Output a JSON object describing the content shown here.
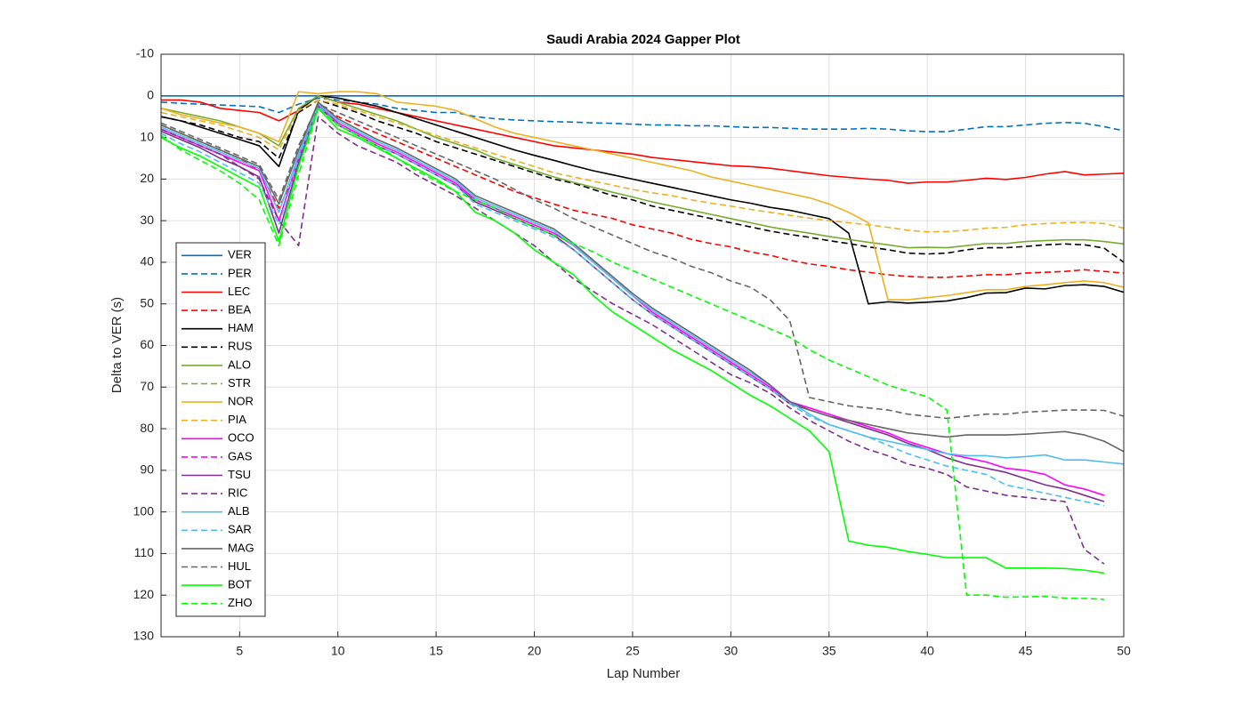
{
  "chart_data": {
    "type": "line",
    "title": "Saudi Arabia 2024 Gapper Plot",
    "x_label": "Lap Number",
    "y_label": "Delta to VER (s)",
    "xlim": [
      1,
      50
    ],
    "xticks": [
      5,
      10,
      15,
      20,
      25,
      30,
      35,
      40,
      45,
      50
    ],
    "ylim": [
      -10,
      130
    ],
    "yticks": [
      -10,
      0,
      10,
      20,
      30,
      40,
      50,
      60,
      70,
      80,
      90,
      100,
      110,
      120,
      130
    ],
    "y_reversed": true,
    "grid": true,
    "legend": "southwest",
    "x": [
      1,
      2,
      3,
      4,
      5,
      6,
      7,
      8,
      9,
      10,
      11,
      12,
      13,
      14,
      15,
      16,
      17,
      18,
      19,
      20,
      21,
      22,
      23,
      24,
      25,
      26,
      27,
      28,
      29,
      30,
      31,
      32,
      33,
      34,
      35,
      36,
      37,
      38,
      39,
      40,
      41,
      42,
      43,
      44,
      45,
      46,
      47,
      48,
      49,
      50
    ],
    "series": [
      {
        "name": "VER",
        "color": "#0072bd",
        "line_style": "solid",
        "values": [
          0,
          0,
          0,
          0,
          0,
          0,
          0,
          0,
          0,
          0,
          0,
          0,
          0,
          0,
          0,
          0,
          0,
          0,
          0,
          0,
          0,
          0,
          0,
          0,
          0,
          0,
          0,
          0,
          0,
          0,
          0,
          0,
          0,
          0,
          0,
          0,
          0,
          0,
          0,
          0,
          0,
          0,
          0,
          0,
          0,
          0,
          0,
          0,
          0,
          0
        ]
      },
      {
        "name": "PER",
        "color": "#0072bd",
        "line_style": "dashed",
        "values": [
          1.5,
          1.8,
          2,
          2.2,
          2.4,
          2.6,
          4,
          2,
          0.5,
          1,
          1.5,
          2,
          3,
          3.5,
          4,
          4,
          5,
          5.5,
          5.8,
          6,
          6.2,
          6.3,
          6.5,
          6.6,
          6.8,
          7,
          7,
          7.2,
          7.2,
          7.4,
          7.6,
          7.6,
          7.8,
          8,
          8,
          8,
          7.8,
          8,
          8.4,
          8.6,
          8.6,
          8,
          7.4,
          7.4,
          7,
          6.6,
          6.4,
          6.6,
          7.4,
          8.4
        ]
      },
      {
        "name": "LEC",
        "color": "#ff0000",
        "line_style": "solid",
        "values": [
          1,
          1,
          1.5,
          3,
          3.5,
          4,
          6,
          3.5,
          0,
          1.5,
          2,
          3,
          4,
          5,
          6,
          7,
          8,
          9,
          10,
          11,
          12,
          12.5,
          13,
          13.5,
          14,
          14.8,
          15.3,
          15.8,
          16.3,
          16.8,
          17,
          17.4,
          18,
          18.6,
          19.2,
          19.6,
          20,
          20.3,
          21,
          20.7,
          20.7,
          20.3,
          19.8,
          20.1,
          19.6,
          18.8,
          18.2,
          19,
          18.8,
          18.6
        ]
      },
      {
        "name": "BEA",
        "color": "#ff0000",
        "line_style": "dashed",
        "values": [
          7,
          9,
          11,
          13,
          15,
          18,
          27,
          17,
          2,
          5,
          7,
          9,
          11,
          13,
          15,
          17,
          19,
          21,
          23,
          24.5,
          26,
          27.5,
          28.5,
          29.5,
          31,
          32,
          33,
          34.5,
          35.5,
          36.3,
          37.5,
          38.3,
          39.5,
          40.4,
          41,
          41.8,
          42.4,
          43,
          43.4,
          43.6,
          43.6,
          43.3,
          43,
          43,
          42.6,
          42.4,
          42.2,
          41.8,
          42.2,
          42.6
        ]
      },
      {
        "name": "HAM",
        "color": "#000000",
        "line_style": "solid",
        "values": [
          5,
          6,
          7.5,
          9,
          10.5,
          12,
          17,
          3.5,
          0,
          0.5,
          1.5,
          2.5,
          4,
          5.5,
          7,
          8.5,
          10,
          11.5,
          13,
          14.3,
          15.5,
          16.8,
          18,
          19,
          20,
          21,
          22,
          23,
          24,
          25,
          25.8,
          26.8,
          27.5,
          28.5,
          29.5,
          33,
          50,
          49.5,
          49.8,
          49.6,
          49.3,
          48.5,
          47.4,
          47.3,
          46.2,
          46.4,
          45.6,
          45.4,
          45.8,
          47.2
        ]
      },
      {
        "name": "RUS",
        "color": "#000000",
        "line_style": "dashed",
        "values": [
          5,
          6,
          7,
          8.5,
          10,
          11,
          15,
          4,
          1,
          2.5,
          4,
          6,
          7.5,
          9,
          11,
          12.5,
          14,
          15.5,
          17,
          18.5,
          20,
          21,
          22.5,
          24,
          25,
          26.5,
          27.5,
          28.5,
          29.5,
          30.5,
          31.5,
          32.5,
          33.3,
          34,
          34.8,
          35.5,
          36.3,
          37,
          37.8,
          38,
          37.8,
          37,
          36.5,
          36.5,
          36.2,
          35.8,
          35.6,
          35.8,
          36.6,
          40
        ]
      },
      {
        "name": "ALO",
        "color": "#77ac30",
        "line_style": "solid",
        "values": [
          3,
          4,
          5,
          6,
          7.5,
          9,
          12,
          3,
          0,
          1.5,
          3,
          4.5,
          6,
          8,
          10,
          11.5,
          13,
          15,
          16.5,
          18,
          19.5,
          20.8,
          22,
          23.2,
          24.3,
          25.5,
          26.5,
          27.5,
          28.5,
          29.5,
          30.5,
          31.5,
          32.3,
          33,
          33.8,
          34.5,
          35.2,
          35.8,
          36.5,
          36.4,
          36.5,
          36,
          35.5,
          35.5,
          35,
          34.8,
          34.6,
          34.6,
          35,
          35.6
        ]
      },
      {
        "name": "STR",
        "color": "#77ac30",
        "line_style": "dashed",
        "values": [
          7,
          9,
          11,
          13,
          15,
          17,
          null,
          null,
          null,
          null,
          null,
          null,
          null,
          null,
          null,
          null,
          null,
          null,
          null,
          null,
          null,
          null,
          null,
          null,
          null,
          null,
          null,
          null,
          null,
          null,
          null,
          null,
          null,
          null,
          null,
          null,
          null,
          null,
          null,
          null,
          null,
          null,
          null,
          null,
          null,
          null,
          null,
          null,
          null,
          null
        ]
      },
      {
        "name": "NOR",
        "color": "#edb120",
        "line_style": "solid",
        "values": [
          3,
          4.5,
          5.5,
          6.5,
          7.5,
          9,
          11,
          -1,
          -0.5,
          -1,
          -1,
          -0.5,
          1.5,
          2,
          2.5,
          3.5,
          5.5,
          7.5,
          9,
          10,
          11,
          12,
          13,
          14,
          15,
          16,
          17,
          18,
          19.5,
          20.5,
          21.5,
          22.5,
          23.5,
          24.5,
          26,
          28,
          30.5,
          49,
          49,
          48.5,
          48,
          47.3,
          46.6,
          46.6,
          45.8,
          45.4,
          44.9,
          44.5,
          44.9,
          46
        ]
      },
      {
        "name": "PIA",
        "color": "#edb120",
        "line_style": "dashed",
        "values": [
          4,
          5,
          6,
          7,
          8.5,
          10,
          13,
          3.5,
          1,
          2,
          3.5,
          5,
          6.5,
          8,
          9.5,
          11,
          12.5,
          14,
          15.5,
          17,
          18.5,
          19.5,
          20.5,
          21.5,
          22.5,
          23.3,
          24,
          25,
          25.8,
          26.5,
          27.3,
          28,
          28.7,
          29.4,
          30,
          30.5,
          31,
          31.6,
          32.3,
          32.7,
          32.6,
          32.3,
          31.8,
          31.6,
          31,
          30.7,
          30.5,
          30.4,
          30.7,
          31.8
        ]
      },
      {
        "name": "OCO",
        "color": "#ff00ff",
        "line_style": "solid",
        "values": [
          8,
          10,
          12,
          14,
          16,
          18,
          30,
          15,
          2,
          6.5,
          9,
          11.5,
          13.5,
          16,
          18.5,
          21,
          25,
          27,
          29,
          31,
          33,
          36,
          40,
          44,
          48,
          52,
          55,
          58,
          61,
          64,
          67,
          70,
          73.5,
          75,
          76.5,
          78,
          79.5,
          81,
          83,
          84.5,
          86,
          87,
          88,
          89.5,
          90,
          91,
          93.5,
          94.5,
          96,
          null
        ]
      },
      {
        "name": "GAS",
        "color": "#ff00ff",
        "line_style": "dashed",
        "values": [
          8,
          10,
          12,
          14,
          16,
          null,
          null,
          null,
          null,
          null,
          null,
          null,
          null,
          null,
          null,
          null,
          null,
          null,
          null,
          null,
          null,
          null,
          null,
          null,
          null,
          null,
          null,
          null,
          null,
          null,
          null,
          null,
          null,
          null,
          null,
          null,
          null,
          null,
          null,
          null,
          null,
          null,
          null,
          null,
          null,
          null,
          null,
          null,
          null,
          null
        ]
      },
      {
        "name": "TSU",
        "color": "#7e2f8e",
        "line_style": "solid",
        "values": [
          8.5,
          10.5,
          12.5,
          15,
          17,
          19.5,
          33,
          16,
          2.5,
          7,
          9.5,
          12,
          14,
          16.5,
          19,
          21.5,
          25.5,
          27.5,
          29.5,
          31.5,
          33.5,
          37,
          41,
          45,
          49,
          52.5,
          55.5,
          58.5,
          61.5,
          64.5,
          67.5,
          70.5,
          74,
          75.5,
          77,
          78.5,
          80,
          81.5,
          83.5,
          85,
          87,
          88.5,
          89.5,
          90.5,
          92,
          93.5,
          94.5,
          96,
          97.5,
          null
        ]
      },
      {
        "name": "RIC",
        "color": "#7e2f8e",
        "line_style": "dashed",
        "values": [
          8,
          10,
          12,
          14,
          17,
          20,
          30,
          36,
          5,
          9,
          12,
          14,
          16,
          19,
          21.5,
          24,
          27,
          30,
          33,
          36,
          40,
          44,
          47,
          50,
          52.5,
          55,
          58,
          61,
          64,
          67,
          69,
          71.5,
          75,
          78,
          80.5,
          83,
          85,
          86.5,
          88.5,
          89.5,
          91,
          94,
          95,
          96,
          96.5,
          97,
          97.5,
          109,
          112.5,
          null
        ]
      },
      {
        "name": "ALB",
        "color": "#4dbeee",
        "line_style": "solid",
        "values": [
          7.5,
          9.5,
          11.5,
          13.5,
          15.5,
          17.5,
          28,
          14,
          2,
          6,
          8.5,
          11,
          13,
          15.5,
          18,
          20.5,
          24.5,
          26.5,
          28.5,
          30.5,
          32.5,
          36,
          40,
          44,
          48,
          51.5,
          54.5,
          57.5,
          60.5,
          63.5,
          66.5,
          69.5,
          73.5,
          76.5,
          79,
          80.5,
          82,
          83,
          84,
          85,
          86,
          86.5,
          86.5,
          87,
          86.7,
          86.3,
          87.5,
          87.5,
          88,
          88.5
        ]
      },
      {
        "name": "SAR",
        "color": "#4dbeee",
        "line_style": "dashed",
        "values": [
          9,
          11.5,
          13.5,
          16,
          18.5,
          21,
          31,
          15,
          2.5,
          7,
          9.5,
          12,
          14,
          16.5,
          19,
          21.5,
          26,
          28,
          30,
          32,
          34,
          37,
          41,
          45,
          49,
          52.5,
          55.5,
          58.5,
          61.5,
          64.5,
          67.5,
          70.5,
          74,
          77,
          79,
          80.5,
          82,
          84,
          86,
          87.5,
          89,
          90,
          91,
          93.5,
          94.5,
          95.5,
          96.5,
          97.5,
          98.5,
          null
        ]
      },
      {
        "name": "MAG",
        "color": "#666666",
        "line_style": "solid",
        "values": [
          7,
          9,
          11,
          13,
          15,
          17,
          26,
          13,
          1.5,
          5.5,
          8,
          10.5,
          12.5,
          15,
          17.5,
          20,
          24,
          26,
          28,
          30,
          32,
          35.5,
          39.5,
          43.5,
          47.5,
          51,
          54,
          57,
          60,
          63,
          66,
          69.5,
          73.5,
          75.5,
          77,
          78,
          79,
          80,
          81,
          81.5,
          82,
          81.5,
          81.5,
          81.5,
          81.3,
          81,
          80.7,
          81.5,
          83,
          85.5
        ]
      },
      {
        "name": "HUL",
        "color": "#666666",
        "line_style": "dashed",
        "values": [
          6.5,
          8.5,
          10.5,
          12.5,
          14.5,
          16.5,
          25,
          12,
          2,
          4,
          6,
          8,
          10,
          12,
          14,
          16,
          18,
          20,
          22.5,
          25,
          27,
          29.5,
          31.5,
          33.5,
          35.5,
          37.5,
          39,
          41,
          42.5,
          44.5,
          46,
          49,
          54,
          72.5,
          73.5,
          74.5,
          75,
          75.5,
          76.5,
          77,
          77.5,
          77,
          76.5,
          76.5,
          76,
          75.8,
          75.5,
          75.5,
          75.6,
          77
        ]
      },
      {
        "name": "BOT",
        "color": "#00ff00",
        "line_style": "solid",
        "values": [
          10,
          12.5,
          14.5,
          17,
          19.5,
          22,
          35,
          17,
          3,
          8,
          10,
          12.5,
          15,
          17.5,
          20,
          23,
          28,
          30,
          33,
          37,
          40,
          43,
          48,
          52,
          55,
          58,
          61,
          63.5,
          66,
          69,
          72,
          74.5,
          77.5,
          80.5,
          85.5,
          107,
          108,
          108.5,
          109.5,
          110.2,
          111,
          111,
          111,
          113.5,
          113.5,
          113.5,
          113.6,
          114,
          114.7,
          null
        ]
      },
      {
        "name": "ZHO",
        "color": "#00ff00",
        "line_style": "dashed",
        "values": [
          9.5,
          13,
          15.5,
          18,
          21,
          25,
          36,
          19,
          3,
          7,
          9.5,
          12,
          15,
          18,
          20.5,
          23,
          25,
          27,
          29.5,
          31.5,
          33.5,
          35.5,
          37.5,
          40,
          42,
          44,
          46,
          48,
          50,
          52,
          54,
          56,
          58,
          61,
          63.5,
          65.5,
          67.5,
          69.5,
          71,
          72.3,
          75.5,
          120,
          120,
          120.5,
          120.4,
          120.3,
          120.7,
          120.8,
          121,
          null
        ]
      }
    ]
  }
}
